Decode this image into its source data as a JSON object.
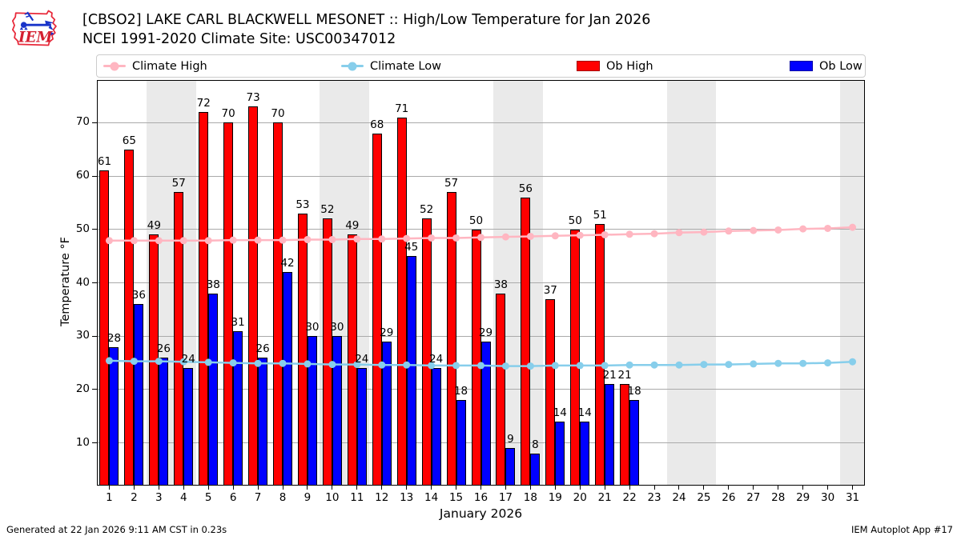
{
  "header": {
    "title_line1": "[CBSO2] LAKE CARL BLACKWELL MESONET :: High/Low Temperature for Jan 2026",
    "title_line2": "NCEI 1991-2020 Climate Site: USC00347012",
    "logo_text": "IEM"
  },
  "footer": {
    "generated": "Generated at 22 Jan 2026 9:11 AM CST in 0.23s",
    "app": "IEM Autoplot App #17"
  },
  "legend": [
    {
      "label": "Climate High",
      "type": "line",
      "color": "#ffb6c1"
    },
    {
      "label": "Climate Low",
      "type": "line",
      "color": "#87ceeb"
    },
    {
      "label": "Ob High",
      "type": "rect",
      "color": "#ff0000"
    },
    {
      "label": "Ob Low",
      "type": "rect",
      "color": "#0000ff"
    }
  ],
  "colors": {
    "ob_high": "#ff0000",
    "ob_low": "#0000ff",
    "climate_high": "#ffb6c1",
    "climate_low": "#87ceeb",
    "weekend_band": "#eaeaea",
    "gridline": "#aaaaaa"
  },
  "chart_data": {
    "type": "bar",
    "title": "[CBSO2] LAKE CARL BLACKWELL MESONET :: High/Low Temperature for Jan 2026",
    "subtitle": "NCEI 1991-2020 Climate Site: USC00347012",
    "xlabel": "January 2026",
    "ylabel": "Temperature °F",
    "x": [
      1,
      2,
      3,
      4,
      5,
      6,
      7,
      8,
      9,
      10,
      11,
      12,
      13,
      14,
      15,
      16,
      17,
      18,
      19,
      20,
      21,
      22,
      23,
      24,
      25,
      26,
      27,
      28,
      29,
      30,
      31
    ],
    "ylim": [
      2,
      78
    ],
    "yticks": [
      10,
      20,
      30,
      40,
      50,
      60,
      70
    ],
    "grid": true,
    "legend_position": "top",
    "weekend_bands": [
      [
        3,
        4
      ],
      [
        10,
        11
      ],
      [
        17,
        18
      ],
      [
        24,
        25
      ],
      [
        31,
        31
      ]
    ],
    "series": [
      {
        "name": "Ob High",
        "type": "bar",
        "color": "#ff0000",
        "values": [
          61,
          65,
          49,
          57,
          72,
          70,
          73,
          70,
          53,
          52,
          49,
          68,
          71,
          52,
          57,
          50,
          38,
          56,
          37,
          50,
          51,
          21,
          null,
          null,
          null,
          null,
          null,
          null,
          null,
          null,
          null
        ]
      },
      {
        "name": "Ob Low",
        "type": "bar",
        "color": "#0000ff",
        "values": [
          28,
          36,
          26,
          24,
          38,
          31,
          26,
          42,
          30,
          30,
          24,
          29,
          45,
          24,
          18,
          29,
          9,
          8,
          14,
          14,
          21,
          18,
          null,
          null,
          null,
          null,
          null,
          null,
          null,
          null,
          null
        ]
      },
      {
        "name": "Climate High",
        "type": "line",
        "color": "#ffb6c1",
        "values": [
          47.9,
          47.9,
          47.9,
          47.9,
          47.9,
          48.0,
          48.0,
          48.0,
          48.1,
          48.1,
          48.2,
          48.2,
          48.3,
          48.4,
          48.4,
          48.5,
          48.6,
          48.7,
          48.8,
          48.9,
          49.0,
          49.1,
          49.2,
          49.4,
          49.5,
          49.7,
          49.8,
          49.9,
          50.1,
          50.2,
          50.4
        ]
      },
      {
        "name": "Climate Low",
        "type": "line",
        "color": "#87ceeb",
        "values": [
          25.4,
          25.3,
          25.3,
          25.2,
          25.1,
          25.0,
          24.9,
          24.9,
          24.8,
          24.7,
          24.7,
          24.6,
          24.6,
          24.5,
          24.5,
          24.5,
          24.4,
          24.4,
          24.5,
          24.5,
          24.5,
          24.6,
          24.6,
          24.6,
          24.7,
          24.7,
          24.8,
          24.9,
          24.9,
          25.0,
          25.2
        ]
      }
    ]
  }
}
